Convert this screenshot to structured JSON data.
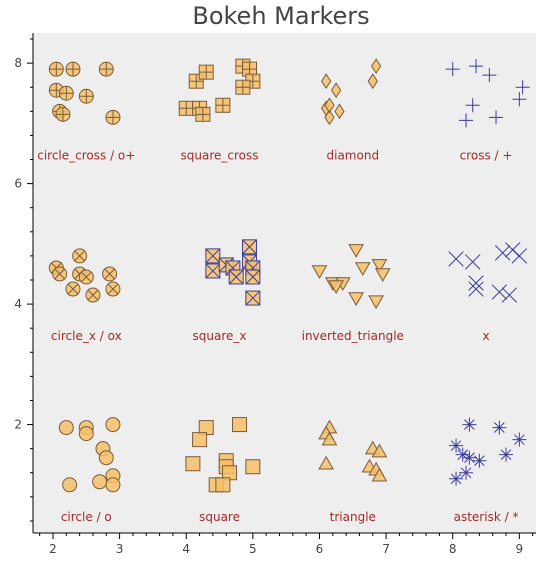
{
  "chart_data": {
    "type": "scatter",
    "title": "Bokeh Markers",
    "xlabel": "",
    "ylabel": "",
    "xlim": [
      1.7,
      9.25
    ],
    "ylim": [
      0.2,
      8.5
    ],
    "x_ticks": [
      2,
      3,
      4,
      5,
      6,
      7,
      8,
      9
    ],
    "y_ticks": [
      2,
      4,
      6,
      8
    ],
    "grid": false,
    "colors": {
      "plot_background": "#eeeeee",
      "fill": "#f4c069",
      "outline_dark": "#7a5c3a",
      "outline_blue": "#3c3c9c",
      "label": "#a52a2a"
    },
    "groups": [
      {
        "marker": "circle_cross",
        "label": "circle_cross / o+",
        "label_pos": [
          2.5,
          6.4
        ],
        "points": [
          [
            2.05,
            7.9
          ],
          [
            2.3,
            7.9
          ],
          [
            2.8,
            7.9
          ],
          [
            2.05,
            7.55
          ],
          [
            2.2,
            7.5
          ],
          [
            2.5,
            7.45
          ],
          [
            2.1,
            7.2
          ],
          [
            2.15,
            7.15
          ],
          [
            2.9,
            7.1
          ]
        ]
      },
      {
        "marker": "square_cross",
        "label": "square_cross",
        "label_pos": [
          4.5,
          6.4
        ],
        "points": [
          [
            4.15,
            7.7
          ],
          [
            4.3,
            7.85
          ],
          [
            4.85,
            7.95
          ],
          [
            4.95,
            7.9
          ],
          [
            5.0,
            7.7
          ],
          [
            4.85,
            7.6
          ],
          [
            4.0,
            7.25
          ],
          [
            4.2,
            7.25
          ],
          [
            4.25,
            7.15
          ],
          [
            4.55,
            7.3
          ]
        ]
      },
      {
        "marker": "diamond",
        "label": "diamond",
        "label_pos": [
          6.5,
          6.4
        ],
        "points": [
          [
            6.1,
            7.7
          ],
          [
            6.25,
            7.55
          ],
          [
            6.85,
            7.95
          ],
          [
            6.8,
            7.7
          ],
          [
            6.1,
            7.25
          ],
          [
            6.15,
            7.1
          ],
          [
            6.3,
            7.2
          ],
          [
            6.15,
            7.3
          ]
        ]
      },
      {
        "marker": "cross",
        "label": "cross / +",
        "label_pos": [
          8.5,
          6.4
        ],
        "points": [
          [
            8.0,
            7.9
          ],
          [
            8.35,
            7.95
          ],
          [
            8.55,
            7.8
          ],
          [
            9.05,
            7.6
          ],
          [
            8.3,
            7.3
          ],
          [
            8.2,
            7.05
          ],
          [
            8.65,
            7.1
          ],
          [
            9.0,
            7.4
          ]
        ]
      },
      {
        "marker": "circle_x",
        "label": "circle_x / ox",
        "label_pos": [
          2.5,
          3.4
        ],
        "points": [
          [
            2.05,
            4.6
          ],
          [
            2.1,
            4.5
          ],
          [
            2.4,
            4.8
          ],
          [
            2.4,
            4.5
          ],
          [
            2.5,
            4.45
          ],
          [
            2.85,
            4.5
          ],
          [
            2.3,
            4.25
          ],
          [
            2.6,
            4.15
          ],
          [
            2.9,
            4.25
          ]
        ]
      },
      {
        "marker": "square_x",
        "label": "square_x",
        "label_pos": [
          4.5,
          3.4
        ],
        "points": [
          [
            4.4,
            4.8
          ],
          [
            4.95,
            4.95
          ],
          [
            4.4,
            4.55
          ],
          [
            4.6,
            4.65
          ],
          [
            4.7,
            4.6
          ],
          [
            4.95,
            4.7
          ],
          [
            5.0,
            4.6
          ],
          [
            4.75,
            4.45
          ],
          [
            5.0,
            4.45
          ],
          [
            5.0,
            4.1
          ]
        ]
      },
      {
        "marker": "inverted_triangle",
        "label": "inverted_triangle",
        "label_pos": [
          6.5,
          3.4
        ],
        "points": [
          [
            6.0,
            4.55
          ],
          [
            6.2,
            4.35
          ],
          [
            6.35,
            4.35
          ],
          [
            6.55,
            4.9
          ],
          [
            6.65,
            4.6
          ],
          [
            6.9,
            4.65
          ],
          [
            6.95,
            4.5
          ],
          [
            6.25,
            4.3
          ],
          [
            6.55,
            4.1
          ],
          [
            6.85,
            4.05
          ]
        ]
      },
      {
        "marker": "x",
        "label": "x",
        "label_pos": [
          8.5,
          3.4
        ],
        "points": [
          [
            8.05,
            4.75
          ],
          [
            8.3,
            4.7
          ],
          [
            8.75,
            4.85
          ],
          [
            8.9,
            4.9
          ],
          [
            9.0,
            4.8
          ],
          [
            8.35,
            4.35
          ],
          [
            8.35,
            4.25
          ],
          [
            8.7,
            4.2
          ],
          [
            8.85,
            4.15
          ]
        ]
      },
      {
        "marker": "circle",
        "label": "circle / o",
        "label_pos": [
          2.5,
          0.4
        ],
        "points": [
          [
            2.2,
            1.95
          ],
          [
            2.5,
            1.95
          ],
          [
            2.5,
            1.85
          ],
          [
            2.9,
            2.0
          ],
          [
            2.75,
            1.6
          ],
          [
            2.8,
            1.45
          ],
          [
            2.7,
            1.05
          ],
          [
            2.9,
            1.15
          ],
          [
            2.9,
            1.0
          ],
          [
            2.25,
            1.0
          ]
        ]
      },
      {
        "marker": "square",
        "label": "square",
        "label_pos": [
          4.5,
          0.4
        ],
        "points": [
          [
            4.3,
            1.95
          ],
          [
            4.2,
            1.75
          ],
          [
            4.8,
            2.0
          ],
          [
            4.1,
            1.35
          ],
          [
            4.6,
            1.4
          ],
          [
            4.6,
            1.3
          ],
          [
            4.65,
            1.2
          ],
          [
            5.0,
            1.3
          ],
          [
            4.45,
            1.0
          ],
          [
            4.55,
            1.0
          ]
        ]
      },
      {
        "marker": "triangle",
        "label": "triangle",
        "label_pos": [
          6.5,
          0.4
        ],
        "points": [
          [
            6.15,
            1.95
          ],
          [
            6.1,
            1.85
          ],
          [
            6.15,
            1.75
          ],
          [
            6.1,
            1.35
          ],
          [
            6.8,
            1.6
          ],
          [
            6.9,
            1.55
          ],
          [
            6.75,
            1.3
          ],
          [
            6.85,
            1.25
          ],
          [
            6.9,
            1.15
          ]
        ]
      },
      {
        "marker": "asterisk",
        "label": "asterisk / *",
        "label_pos": [
          8.5,
          0.4
        ],
        "points": [
          [
            8.25,
            2.0
          ],
          [
            8.7,
            1.95
          ],
          [
            8.05,
            1.65
          ],
          [
            8.15,
            1.5
          ],
          [
            8.25,
            1.45
          ],
          [
            8.4,
            1.4
          ],
          [
            8.8,
            1.5
          ],
          [
            9.0,
            1.75
          ],
          [
            8.2,
            1.2
          ],
          [
            8.05,
            1.1
          ]
        ]
      }
    ]
  }
}
